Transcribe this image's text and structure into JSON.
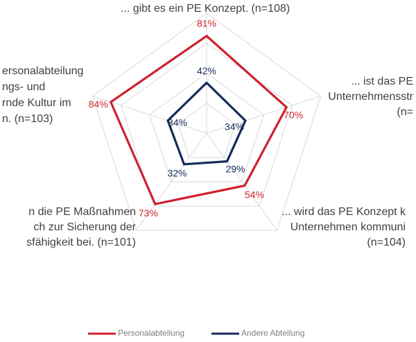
{
  "chart_data": {
    "type": "radar",
    "scale_max": 100,
    "grid_rings": [
      25,
      50,
      75,
      100
    ],
    "grid": true,
    "legend_position": "bottom",
    "axes": [
      {
        "key": "konzept",
        "label_lines": [
          "... gibt es ein PE Konzept. (n=108)"
        ]
      },
      {
        "key": "strategie",
        "label_lines": [
          "... ist das PE",
          "Unternehmensstr",
          "(n="
        ]
      },
      {
        "key": "kommuniziert",
        "label_lines": [
          "... wird das PE Konzept k",
          "Unternehmen kommuni",
          "(n=104)"
        ]
      },
      {
        "key": "sicherung",
        "label_lines": [
          "n die PE Maßnahmen",
          "ch zur Sicherung der",
          "sfähigkeit bei. (n=101)"
        ]
      },
      {
        "key": "kultur",
        "label_lines": [
          "ersonalabteilung",
          "ngs- und",
          "rnde Kultur im",
          "n. (n=103)"
        ]
      }
    ],
    "series": [
      {
        "name": "Personalabteilung",
        "color": "#d0202e",
        "values": [
          81,
          70,
          54,
          73,
          84
        ],
        "value_labels": [
          "81%",
          "70%",
          "54%",
          "73%",
          "84%"
        ]
      },
      {
        "name": "Andere Abteilung",
        "color": "#152b58",
        "values": [
          42,
          34,
          29,
          32,
          34
        ],
        "value_labels": [
          "42%",
          "34%",
          "29%",
          "32%",
          "34%"
        ]
      }
    ]
  }
}
